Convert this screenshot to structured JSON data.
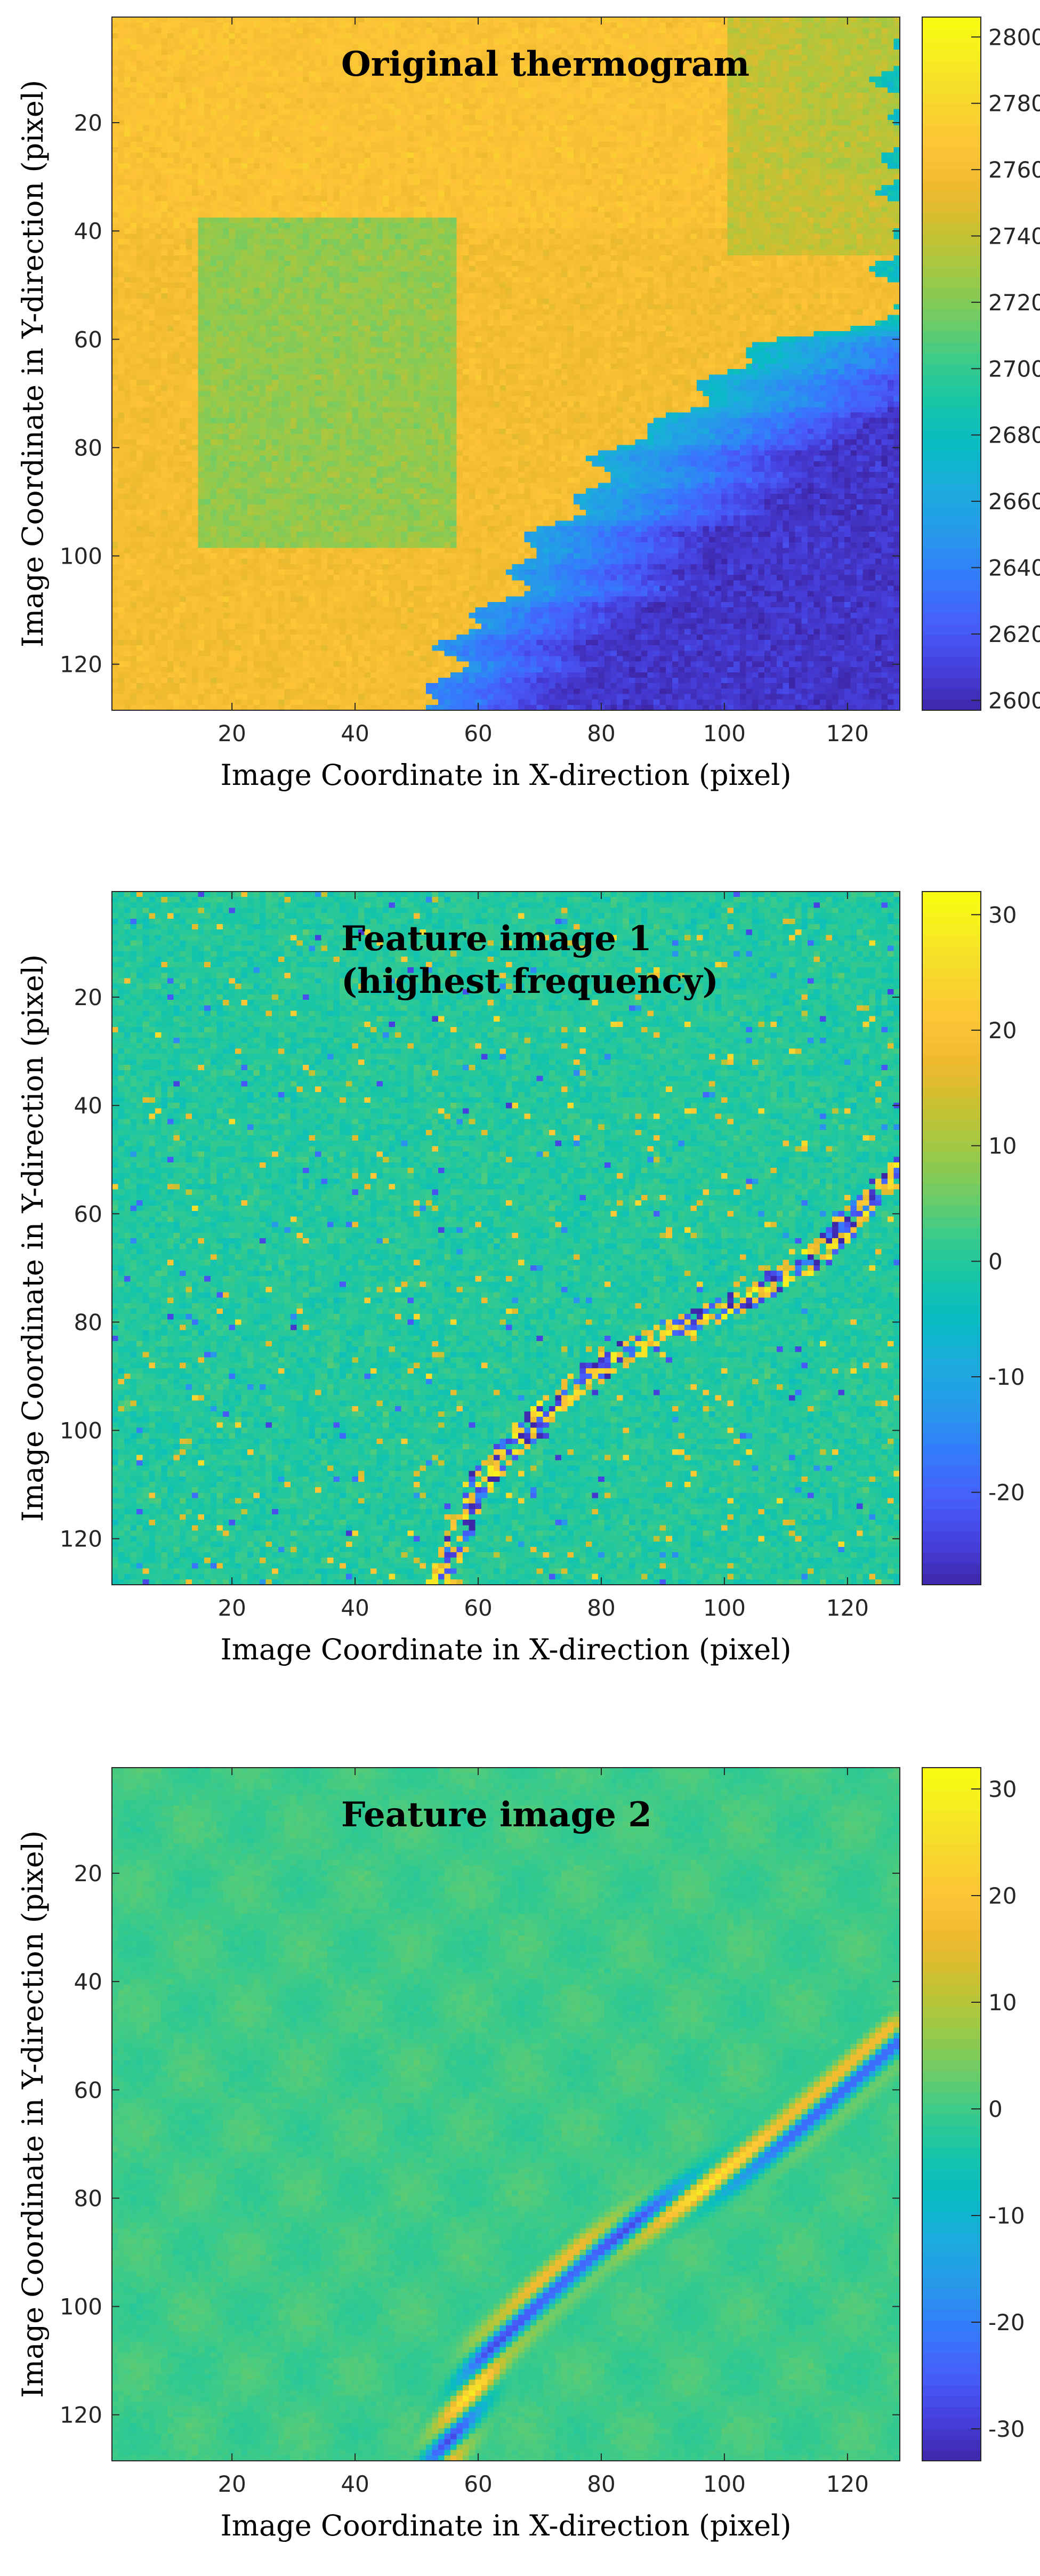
{
  "chart_data": [
    {
      "type": "heatmap",
      "pattern": "thermogram",
      "title": "Original thermogram",
      "title_lines": [
        "Original thermogram"
      ],
      "xlabel": "Image Coordinate in X-direction (pixel)",
      "ylabel": "Image Coordinate in Y-direction (pixel)",
      "xlim": [
        0.5,
        128.5
      ],
      "ylim": [
        0.5,
        128.5
      ],
      "y_direction": "reversed",
      "xticks": [
        20,
        40,
        60,
        80,
        100,
        120
      ],
      "yticks": [
        20,
        40,
        60,
        80,
        100,
        120
      ],
      "colorbar": {
        "range": [
          2597,
          2806
        ],
        "ticks": [
          2600,
          2620,
          2640,
          2660,
          2680,
          2700,
          2720,
          2740,
          2760,
          2780,
          2800
        ]
      },
      "regions": {
        "background_level": 2760,
        "top_band_level": 2765,
        "top_right_level": 2740,
        "square_level": 2725,
        "square_x": [
          15,
          56
        ],
        "square_y": [
          38,
          98
        ],
        "cold_region_level_range": [
          2605,
          2680
        ],
        "boundary_points": [
          [
            50,
            128
          ],
          [
            58,
            115
          ],
          [
            65,
            105
          ],
          [
            74,
            92
          ],
          [
            82,
            82
          ],
          [
            95,
            70
          ],
          [
            110,
            60
          ],
          [
            128,
            55
          ]
        ]
      }
    },
    {
      "type": "heatmap",
      "pattern": "feature1",
      "title": "Feature image 1 (highest frequency)",
      "title_lines": [
        "Feature image 1",
        "(highest frequency)"
      ],
      "xlabel": "Image Coordinate in X-direction (pixel)",
      "ylabel": "Image Coordinate in Y-direction (pixel)",
      "xlim": [
        0.5,
        128.5
      ],
      "ylim": [
        0.5,
        128.5
      ],
      "y_direction": "reversed",
      "xticks": [
        20,
        40,
        60,
        80,
        100,
        120
      ],
      "yticks": [
        20,
        40,
        60,
        80,
        100,
        120
      ],
      "colorbar": {
        "range": [
          -28,
          32
        ],
        "ticks": [
          -20,
          -10,
          0,
          10,
          20,
          30
        ]
      },
      "regions": {
        "background_level": 0,
        "edge_points": [
          [
            54,
            128
          ],
          [
            60,
            110
          ],
          [
            68,
            100
          ],
          [
            75,
            92
          ],
          [
            85,
            85
          ],
          [
            95,
            80
          ],
          [
            105,
            75
          ],
          [
            115,
            68
          ],
          [
            128,
            52
          ]
        ]
      }
    },
    {
      "type": "heatmap",
      "pattern": "feature2",
      "title": "Feature image 2",
      "title_lines": [
        "Feature image 2"
      ],
      "xlabel": "Image Coordinate in X-direction (pixel)",
      "ylabel": "Image Coordinate in Y-direction (pixel)",
      "xlim": [
        0.5,
        128.5
      ],
      "ylim": [
        0.5,
        128.5
      ],
      "y_direction": "reversed",
      "xticks": [
        20,
        40,
        60,
        80,
        100,
        120
      ],
      "yticks": [
        20,
        40,
        60,
        80,
        100,
        120
      ],
      "colorbar": {
        "range": [
          -33,
          32
        ],
        "ticks": [
          -30,
          -20,
          -10,
          0,
          10,
          20,
          30
        ]
      },
      "regions": {
        "background_level": 0,
        "edge_points": [
          [
            54,
            128
          ],
          [
            62,
            108
          ],
          [
            70,
            98
          ],
          [
            78,
            90
          ],
          [
            90,
            82
          ],
          [
            100,
            76
          ],
          [
            110,
            68
          ],
          [
            120,
            58
          ],
          [
            128,
            50
          ]
        ]
      }
    }
  ]
}
